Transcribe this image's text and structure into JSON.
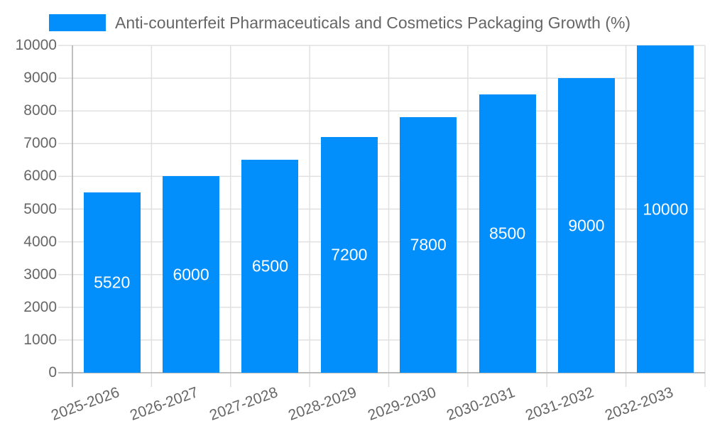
{
  "legend": {
    "label": "Anti-counterfeit Pharmaceuticals and Cosmetics Packaging Growth (%)",
    "color": "#038ffb"
  },
  "colors": {
    "bar": "#038ffb",
    "grid": "#e0e0e0",
    "axis": "#aaaaaa",
    "text": "#666666",
    "label": "#ffffff"
  },
  "y_ticks": [
    "10000",
    "9000",
    "8000",
    "7000",
    "6000",
    "5000",
    "4000",
    "3000",
    "2000",
    "1000",
    "0"
  ],
  "chart_data": {
    "type": "bar",
    "title": "",
    "categories": [
      "2025-2026",
      "2026-2027",
      "2027-2028",
      "2028-2029",
      "2029-2030",
      "2030-2031",
      "2031-2032",
      "2032-2033"
    ],
    "series": [
      {
        "name": "Anti-counterfeit Pharmaceuticals and Cosmetics Packaging Growth (%)",
        "values": [
          5520,
          6000,
          6500,
          7200,
          7800,
          8500,
          9000,
          10000
        ]
      }
    ],
    "values": [
      5520,
      6000,
      6500,
      7200,
      7800,
      8500,
      9000,
      10000
    ],
    "value_labels": [
      "5520",
      "6000",
      "6500",
      "7200",
      "7800",
      "8500",
      "9000",
      "10000"
    ],
    "xlabel": "",
    "ylabel": "",
    "ylim": [
      0,
      10000
    ],
    "y_tick_step": 1000,
    "grid": true,
    "legend_position": "top",
    "data_labels": "inside-center"
  }
}
